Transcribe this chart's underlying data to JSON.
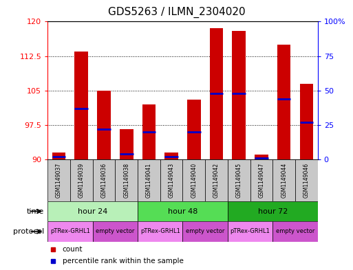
{
  "title": "GDS5263 / ILMN_2304020",
  "samples": [
    "GSM1149037",
    "GSM1149039",
    "GSM1149036",
    "GSM1149038",
    "GSM1149041",
    "GSM1149043",
    "GSM1149040",
    "GSM1149042",
    "GSM1149045",
    "GSM1149047",
    "GSM1149044",
    "GSM1149046"
  ],
  "counts": [
    91.5,
    113.5,
    105.0,
    96.5,
    102.0,
    91.5,
    103.0,
    118.5,
    118.0,
    91.0,
    115.0,
    106.5
  ],
  "percentiles": [
    2,
    37,
    22,
    4,
    20,
    2,
    20,
    48,
    48,
    1,
    44,
    27
  ],
  "y_min": 90,
  "y_max": 120,
  "y_ticks": [
    90,
    97.5,
    105,
    112.5,
    120
  ],
  "y2_ticks": [
    0,
    25,
    50,
    75,
    100
  ],
  "bar_color": "#cc0000",
  "percentile_color": "#0000cc",
  "title_fontsize": 11,
  "time_groups": [
    {
      "label": "hour 24",
      "start": 0,
      "end": 4
    },
    {
      "label": "hour 48",
      "start": 4,
      "end": 8
    },
    {
      "label": "hour 72",
      "start": 8,
      "end": 12
    }
  ],
  "time_colors": [
    "#b8f0b8",
    "#55dd55",
    "#22aa22"
  ],
  "protocol_groups": [
    {
      "label": "pTRex-GRHL1",
      "start": 0,
      "end": 2
    },
    {
      "label": "empty vector",
      "start": 2,
      "end": 4
    },
    {
      "label": "pTRex-GRHL1",
      "start": 4,
      "end": 6
    },
    {
      "label": "empty vector",
      "start": 6,
      "end": 8
    },
    {
      "label": "pTRex-GRHL1",
      "start": 8,
      "end": 10
    },
    {
      "label": "empty vector",
      "start": 10,
      "end": 12
    }
  ],
  "prot_colors": [
    "#ee88ee",
    "#cc55cc"
  ],
  "background_color": "#ffffff",
  "sample_bg_color": "#c8c8c8"
}
